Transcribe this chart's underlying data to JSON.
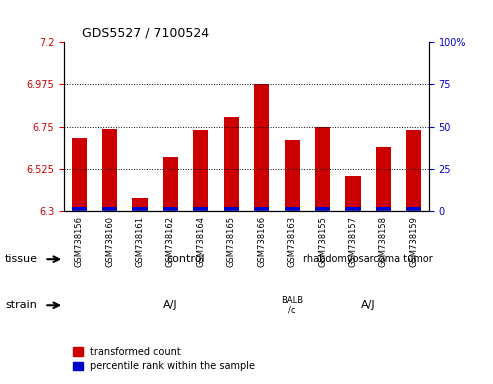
{
  "title": "GDS5527 / 7100524",
  "samples": [
    "GSM738156",
    "GSM738160",
    "GSM738161",
    "GSM738162",
    "GSM738164",
    "GSM738165",
    "GSM738166",
    "GSM738163",
    "GSM738155",
    "GSM738157",
    "GSM738158",
    "GSM738159"
  ],
  "red_values": [
    6.69,
    6.74,
    6.37,
    6.59,
    6.73,
    6.8,
    6.975,
    6.68,
    6.75,
    6.49,
    6.64,
    6.73
  ],
  "blue_values": [
    0.02,
    0.05,
    0.01,
    0.03,
    0.04,
    0.15,
    0.3,
    0.03,
    0.1,
    0.02,
    0.03,
    0.05
  ],
  "y_min": 6.3,
  "y_max": 7.2,
  "y_ticks": [
    6.3,
    6.525,
    6.75,
    6.975,
    7.2
  ],
  "y_tick_labels": [
    "6.3",
    "6.525",
    "6.75",
    "6.975",
    "7.2"
  ],
  "right_y_ticks": [
    0,
    25,
    50,
    75,
    100
  ],
  "right_y_tick_labels": [
    "0",
    "25",
    "50",
    "75",
    "100%"
  ],
  "tissue_groups": [
    {
      "label": "control",
      "start": 0,
      "end": 8,
      "color": "#90EE90"
    },
    {
      "label": "rhabdomyosarcoma tumor",
      "start": 8,
      "end": 12,
      "color": "#90EE90"
    }
  ],
  "strain_groups": [
    {
      "label": "A/J",
      "start": 0,
      "end": 8,
      "color": "#FFB6C1"
    },
    {
      "label": "BALB\n/c",
      "start": 7,
      "end": 8,
      "color": "#FF69B4"
    },
    {
      "label": "A/J",
      "start": 8,
      "end": 12,
      "color": "#FFB6C1"
    }
  ],
  "bar_width": 0.5,
  "red_color": "#CC0000",
  "blue_color": "#0000CC",
  "grid_color": "#000000",
  "bg_color": "#FFFFFF",
  "left_tick_color": "#CC0000",
  "right_tick_color": "#0000CC"
}
